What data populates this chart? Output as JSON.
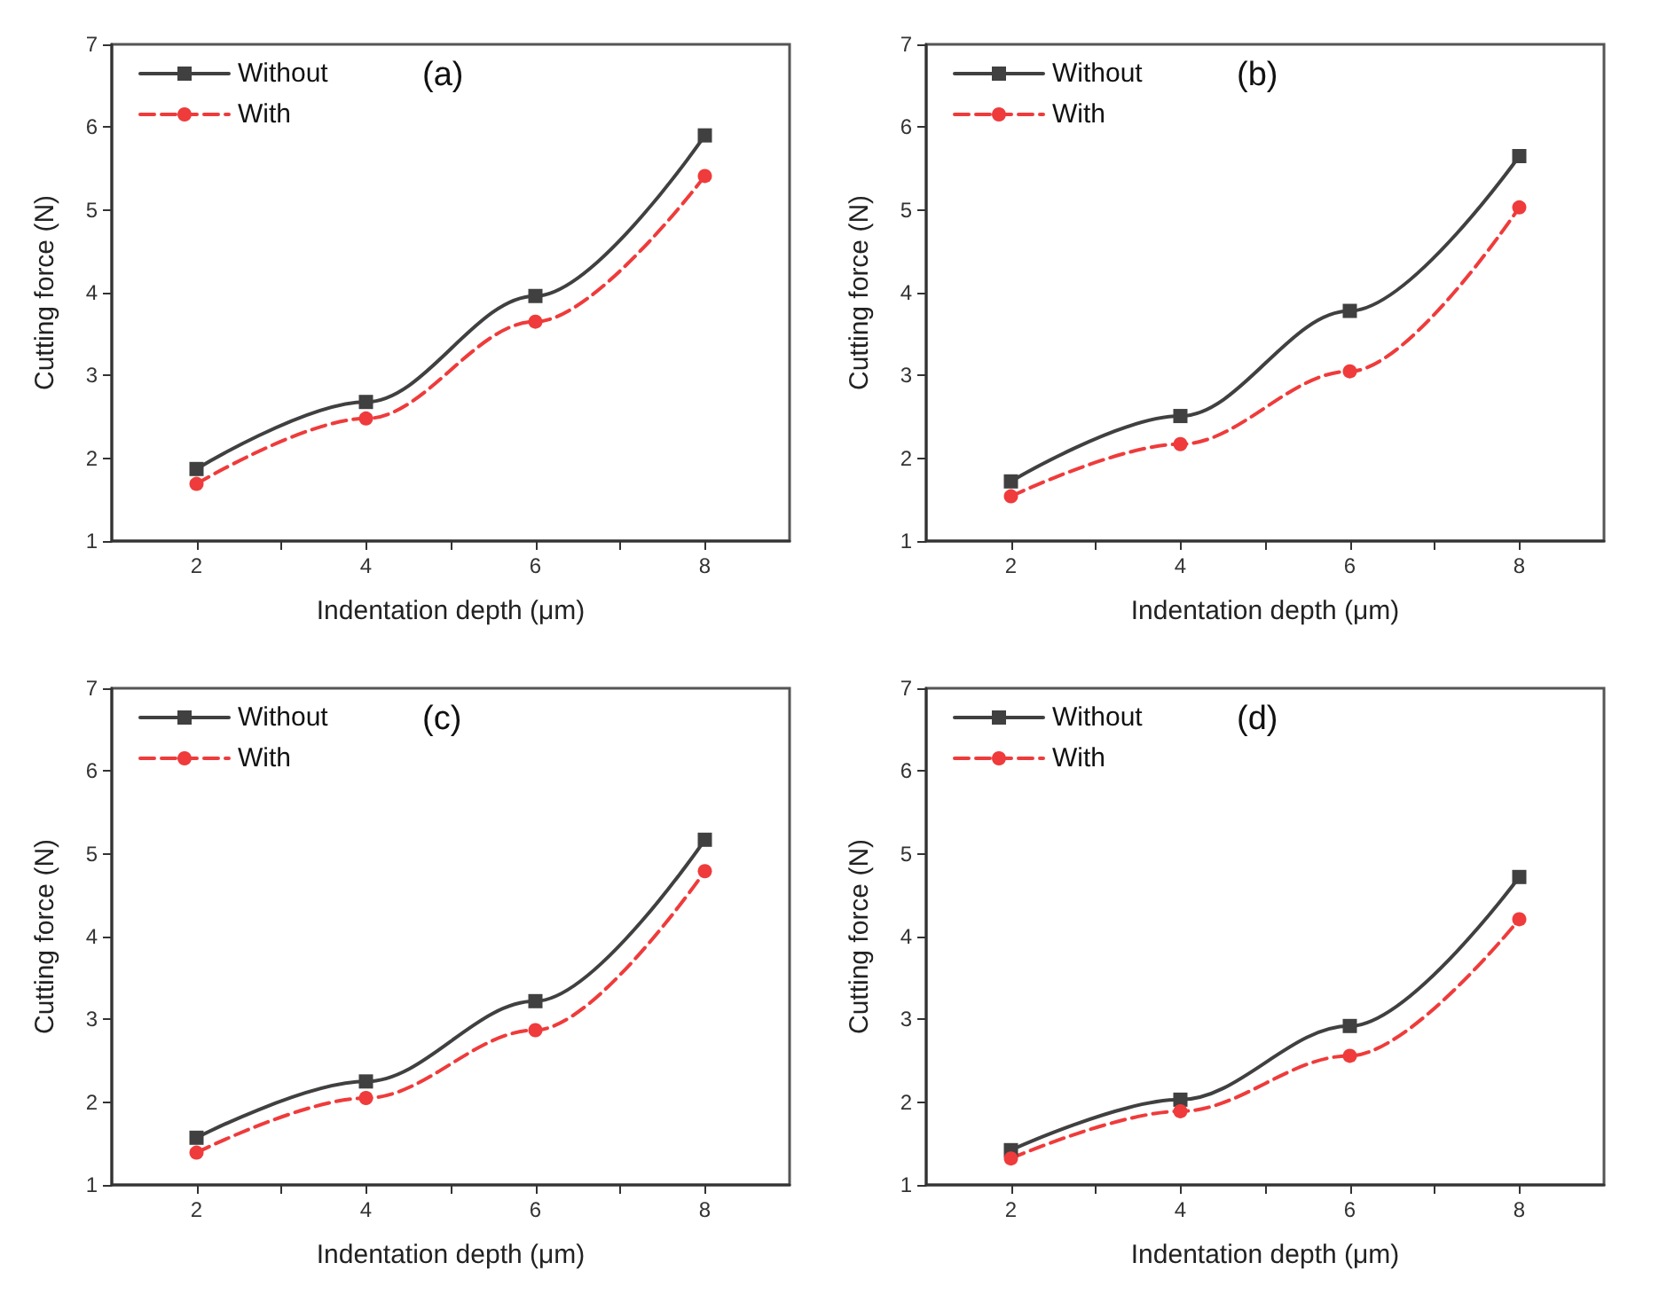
{
  "chart_data": [
    {
      "type": "line",
      "annotations": [
        "(a)"
      ],
      "xlabel": "Indentation depth (μm)",
      "ylabel": "Cutting force (N)",
      "x": [
        2,
        4,
        6,
        8
      ],
      "xlim": [
        1,
        9
      ],
      "xticks": [
        2,
        {
          "value": 3,
          "label": null
        },
        4,
        {
          "value": 5,
          "label": null
        },
        6,
        {
          "value": 7,
          "label": null
        },
        8
      ],
      "ylim": [
        1,
        7
      ],
      "yticks": [
        1,
        2,
        3,
        4,
        5,
        6,
        7
      ],
      "grid": false,
      "legend": "top left",
      "series": [
        {
          "name": "Without",
          "color": "#404040",
          "marker": "square",
          "line_style": "solid",
          "values": [
            1.87,
            2.68,
            3.96,
            5.9
          ]
        },
        {
          "name": "With",
          "color": "#ef3b3b",
          "marker": "circle",
          "line_style": "dashed",
          "values": [
            1.69,
            2.48,
            3.65,
            5.41
          ]
        }
      ]
    },
    {
      "type": "line",
      "annotations": [
        "(b)"
      ],
      "xlabel": "Indentation depth (μm)",
      "ylabel": "Cutting force (N)",
      "x": [
        2,
        4,
        6,
        8
      ],
      "xlim": [
        1,
        9
      ],
      "xticks": [
        2,
        {
          "value": 3,
          "label": null
        },
        4,
        {
          "value": 5,
          "label": null
        },
        6,
        {
          "value": 7,
          "label": null
        },
        8
      ],
      "ylim": [
        1,
        7
      ],
      "yticks": [
        1,
        2,
        3,
        4,
        5,
        6,
        7
      ],
      "grid": false,
      "legend": "top left",
      "series": [
        {
          "name": "Without",
          "color": "#404040",
          "marker": "square",
          "line_style": "solid",
          "values": [
            1.72,
            2.51,
            3.78,
            5.65
          ]
        },
        {
          "name": "With",
          "color": "#ef3b3b",
          "marker": "circle",
          "line_style": "dashed",
          "values": [
            1.54,
            2.17,
            3.05,
            5.03
          ]
        }
      ]
    },
    {
      "type": "line",
      "annotations": [
        "(c)"
      ],
      "xlabel": "Indentation depth (μm)",
      "ylabel": "Cutting force (N)",
      "x": [
        2,
        4,
        6,
        8
      ],
      "xlim": [
        1,
        9
      ],
      "xticks": [
        2,
        {
          "value": 3,
          "label": null
        },
        4,
        {
          "value": 5,
          "label": null
        },
        6,
        {
          "value": 7,
          "label": null
        },
        8
      ],
      "ylim": [
        1,
        7
      ],
      "yticks": [
        1,
        2,
        3,
        4,
        5,
        6,
        7
      ],
      "grid": false,
      "legend": "top left",
      "series": [
        {
          "name": "Without",
          "color": "#404040",
          "marker": "square",
          "line_style": "solid",
          "values": [
            1.57,
            2.25,
            3.22,
            5.17
          ]
        },
        {
          "name": "With",
          "color": "#ef3b3b",
          "marker": "circle",
          "line_style": "dashed",
          "values": [
            1.39,
            2.05,
            2.87,
            4.79
          ]
        }
      ]
    },
    {
      "type": "line",
      "annotations": [
        "(d)"
      ],
      "xlabel": "Indentation depth (μm)",
      "ylabel": "Cutting force (N)",
      "x": [
        2,
        4,
        6,
        8
      ],
      "xlim": [
        1,
        9
      ],
      "xticks": [
        2,
        {
          "value": 3,
          "label": null
        },
        4,
        {
          "value": 5,
          "label": null
        },
        6,
        {
          "value": 7,
          "label": null
        },
        8
      ],
      "ylim": [
        1,
        7
      ],
      "yticks": [
        1,
        2,
        3,
        4,
        5,
        6,
        7
      ],
      "grid": false,
      "legend": "top left",
      "series": [
        {
          "name": "Without",
          "color": "#404040",
          "marker": "square",
          "line_style": "solid",
          "values": [
            1.42,
            2.03,
            2.92,
            4.72
          ]
        },
        {
          "name": "With",
          "color": "#ef3b3b",
          "marker": "circle",
          "line_style": "dashed",
          "values": [
            1.32,
            1.89,
            2.56,
            4.21
          ]
        }
      ]
    }
  ]
}
